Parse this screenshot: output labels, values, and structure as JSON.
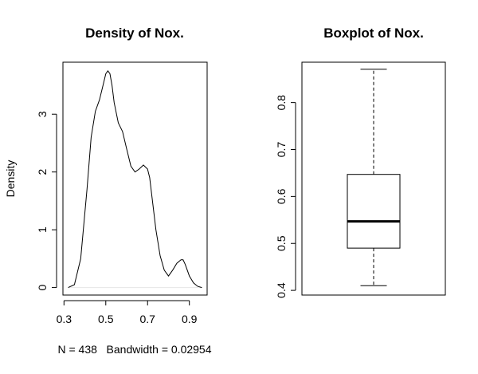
{
  "chart_data": [
    {
      "type": "line",
      "title": "Density of Nox.",
      "xlabel": "N = 438   Bandwidth = 0.02954",
      "ylabel": "Density",
      "xlim": [
        0.295,
        0.985
      ],
      "ylim": [
        -0.13,
        3.9
      ],
      "x_ticks": [
        0.3,
        0.5,
        0.7,
        0.9
      ],
      "x_tick_labels": [
        "0.3",
        "0.5",
        "0.7",
        "0.9"
      ],
      "y_ticks": [
        0,
        1,
        2,
        3
      ],
      "y_tick_labels": [
        "0",
        "1",
        "2",
        "3"
      ],
      "baseline": 0,
      "series": [
        {
          "x": [
            0.32,
            0.35,
            0.38,
            0.41,
            0.43,
            0.45,
            0.47,
            0.49,
            0.5,
            0.51,
            0.52,
            0.53,
            0.54,
            0.56,
            0.58,
            0.6,
            0.62,
            0.64,
            0.66,
            0.68,
            0.7,
            0.71,
            0.72,
            0.74,
            0.76,
            0.78,
            0.8,
            0.82,
            0.84,
            0.86,
            0.87,
            0.88,
            0.9,
            0.92,
            0.94,
            0.96
          ],
          "y": [
            0.0,
            0.05,
            0.5,
            1.7,
            2.6,
            3.05,
            3.25,
            3.55,
            3.7,
            3.75,
            3.7,
            3.5,
            3.2,
            2.85,
            2.7,
            2.4,
            2.1,
            2.0,
            2.05,
            2.12,
            2.05,
            1.9,
            1.6,
            1.0,
            0.55,
            0.3,
            0.2,
            0.3,
            0.42,
            0.48,
            0.48,
            0.4,
            0.2,
            0.08,
            0.02,
            0.0
          ]
        }
      ]
    },
    {
      "type": "box",
      "title": "Boxplot of Nox.",
      "ylim": [
        0.39,
        0.886
      ],
      "y_ticks": [
        0.4,
        0.5,
        0.6,
        0.7,
        0.8
      ],
      "y_tick_labels": [
        "0.4",
        "0.5",
        "0.6",
        "0.7",
        "0.8"
      ],
      "whisker_low": 0.41,
      "q1": 0.49,
      "median": 0.547,
      "q3": 0.647,
      "whisker_high": 0.871
    }
  ]
}
